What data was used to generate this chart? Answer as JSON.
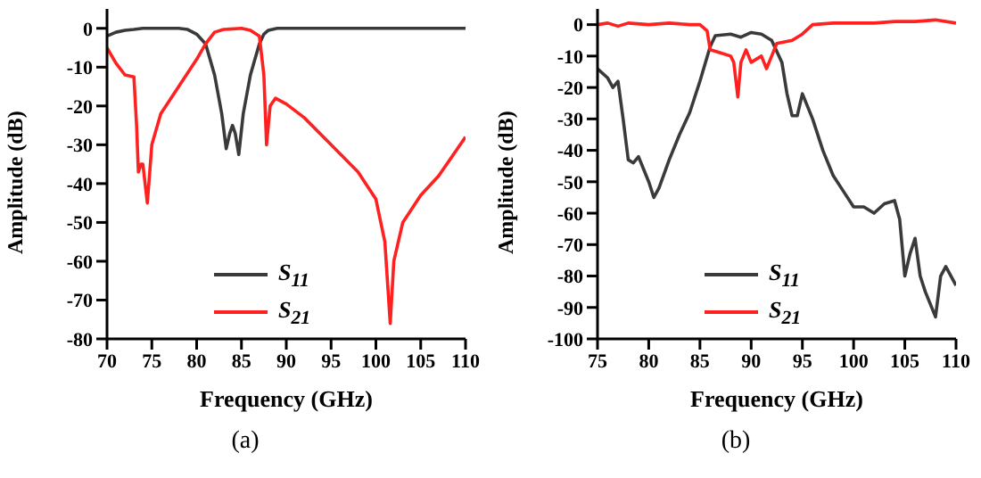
{
  "chart_data": [
    {
      "type": "line",
      "title": "(a)",
      "xlabel": "Frequency (GHz)",
      "ylabel": "Amplitude (dB)",
      "xlim": [
        70,
        110
      ],
      "xticks": [
        70,
        75,
        80,
        85,
        90,
        95,
        100,
        105,
        110
      ],
      "ylim": [
        -80,
        5
      ],
      "yticks": [
        -80,
        -70,
        -60,
        -50,
        -40,
        -30,
        -20,
        -10,
        0
      ],
      "legend": "bottom",
      "grid": false,
      "series": [
        {
          "name": "S$_{11}$",
          "color": "#3a3a3a",
          "x": [
            70,
            71,
            72,
            73,
            74,
            76,
            78,
            79,
            80,
            81,
            82,
            82.8,
            83.3,
            83.7,
            84,
            84.3,
            84.7,
            85.2,
            86,
            86.5,
            87,
            87.5,
            88,
            89,
            110
          ],
          "values": [
            -2,
            -1,
            -0.5,
            -0.3,
            0,
            0,
            0,
            -0.3,
            -1.5,
            -4,
            -12,
            -22,
            -31,
            -27,
            -25,
            -27,
            -32.5,
            -22,
            -12,
            -8,
            -4,
            -1.5,
            -0.5,
            0,
            0
          ]
        },
        {
          "name": "S$_{21}$",
          "color": "#ff2020",
          "x": [
            70,
            71,
            72,
            73,
            73.3,
            73.5,
            73.8,
            74,
            74.5,
            75,
            76,
            78,
            80,
            81,
            82,
            83,
            85,
            86,
            87,
            87.5,
            87.8,
            88.2,
            88.8,
            90,
            92,
            95,
            98,
            100,
            101,
            101.6,
            102,
            103,
            105,
            107,
            110
          ],
          "values": [
            -5,
            -9,
            -12,
            -12.5,
            -25,
            -37,
            -35,
            -35,
            -45,
            -30,
            -22,
            -15,
            -8,
            -4,
            -1,
            -0.3,
            0,
            -0.5,
            -2,
            -12,
            -30,
            -20,
            -18,
            -19.5,
            -23,
            -30,
            -37,
            -44,
            -55,
            -76,
            -60,
            -50,
            -43,
            -38,
            -28
          ]
        }
      ]
    },
    {
      "type": "line",
      "title": "(b)",
      "xlabel": "Frequency (GHz)",
      "ylabel": "Amplitude (dB)",
      "xlim": [
        75,
        110
      ],
      "xticks": [
        75,
        80,
        85,
        90,
        95,
        100,
        105,
        110
      ],
      "ylim": [
        -100,
        5
      ],
      "yticks": [
        -100,
        -90,
        -80,
        -70,
        -60,
        -50,
        -40,
        -30,
        -20,
        -10,
        0
      ],
      "legend": "bottom",
      "grid": false,
      "series": [
        {
          "name": "S$_{11}$",
          "color": "#3a3a3a",
          "x": [
            75,
            76,
            76.5,
            77,
            77.5,
            78,
            78.5,
            79,
            79.5,
            80,
            80.5,
            81,
            82,
            83,
            84,
            85,
            86,
            86.5,
            88,
            89,
            90,
            91,
            92,
            93,
            93.5,
            94,
            94.5,
            95,
            96,
            97,
            98,
            99,
            100,
            101,
            102,
            103,
            104,
            104.5,
            105,
            105.5,
            106,
            106.5,
            107,
            108,
            108.5,
            109,
            110
          ],
          "values": [
            -14,
            -17,
            -20,
            -18,
            -30,
            -43,
            -44,
            -42,
            -46,
            -50,
            -55,
            -52,
            -43,
            -35,
            -28,
            -18,
            -7,
            -3.5,
            -3,
            -4,
            -2.5,
            -3,
            -5,
            -12,
            -22,
            -29,
            -29,
            -22,
            -30,
            -40,
            -48,
            -53,
            -58,
            -58,
            -60,
            -57,
            -56,
            -62,
            -80,
            -73,
            -68,
            -80,
            -85,
            -93,
            -80,
            -77,
            -83
          ]
        },
        {
          "name": "S$_{21}$",
          "color": "#ff2020",
          "x": [
            75,
            76,
            77,
            78,
            80,
            82,
            84,
            85,
            85.7,
            86,
            87,
            88,
            88.3,
            88.7,
            89,
            89.5,
            90,
            91,
            91.5,
            92,
            92.5,
            94,
            95,
            96,
            98,
            100,
            102,
            104,
            106,
            108,
            110
          ],
          "values": [
            0,
            0.5,
            -0.5,
            0.5,
            0,
            0.5,
            0,
            0,
            -2,
            -8,
            -9,
            -10,
            -12,
            -23,
            -12,
            -8,
            -12,
            -10,
            -14,
            -10,
            -6,
            -5,
            -3,
            0,
            0.5,
            0.5,
            0.5,
            1,
            1,
            1.5,
            0.5
          ]
        }
      ]
    }
  ]
}
